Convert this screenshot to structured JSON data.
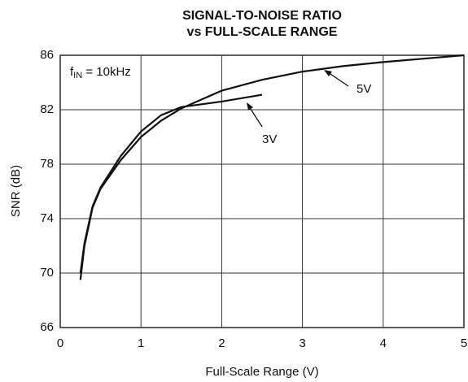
{
  "chart_data": {
    "type": "line",
    "title": [
      "SIGNAL-TO-NOISE RATIO",
      "vs FULL-SCALE RANGE"
    ],
    "x_label": "Full-Scale Range (V)",
    "y_label": "SNR (dB)",
    "annotation": {
      "symbol": "f",
      "subscript": "IN",
      "text": " = 10kHz"
    },
    "xlim": [
      0,
      5
    ],
    "xticks": [
      0,
      1,
      2,
      3,
      4,
      5
    ],
    "ylim": [
      66,
      86
    ],
    "yticks": [
      66,
      70,
      74,
      78,
      82,
      86
    ],
    "grid": true,
    "series": [
      {
        "name": "5V",
        "color": "#111111",
        "x": [
          0.25,
          0.3,
          0.4,
          0.5,
          0.75,
          1,
          1.25,
          1.5,
          2,
          2.5,
          3,
          3.5,
          4,
          4.5,
          5
        ],
        "values": [
          69.5,
          72,
          74.8,
          76.2,
          78.3,
          80,
          81.2,
          82.1,
          83.4,
          84.2,
          84.8,
          85.2,
          85.5,
          85.75,
          86
        ]
      },
      {
        "name": "3V",
        "color": "#111111",
        "x": [
          0.25,
          0.3,
          0.4,
          0.5,
          0.75,
          1,
          1.25,
          1.5,
          2,
          2.5
        ],
        "values": [
          70,
          72.2,
          74.9,
          76.3,
          78.6,
          80.4,
          81.6,
          82.2,
          82.6,
          83.1
        ]
      }
    ]
  }
}
